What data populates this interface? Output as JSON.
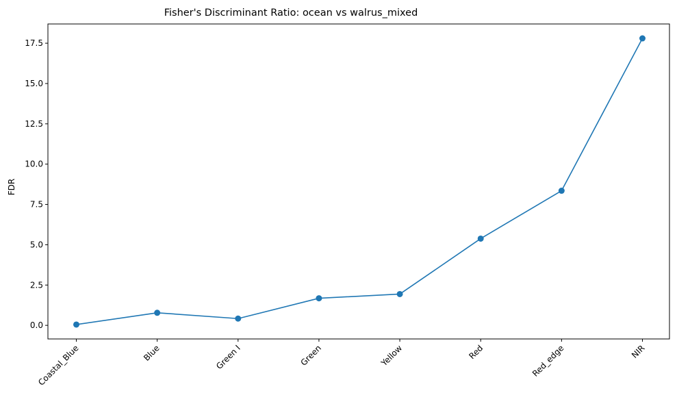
{
  "chart_data": {
    "type": "line",
    "title": "Fisher's Discriminant Ratio: ocean vs walrus_mixed",
    "xlabel": "",
    "ylabel": "FDR",
    "categories": [
      "Coastal_Blue",
      "Blue",
      "Green I",
      "Green",
      "Yellow",
      "Red",
      "Red_edge",
      "NIR"
    ],
    "series": [
      {
        "values": [
          0.05,
          0.78,
          0.42,
          1.68,
          1.94,
          5.38,
          8.35,
          17.8
        ]
      }
    ],
    "yticks": [
      "0.0",
      "2.5",
      "5.0",
      "7.5",
      "10.0",
      "12.5",
      "15.0",
      "17.5"
    ],
    "ylim": [
      -0.8435,
      18.6935
    ],
    "grid": false,
    "marker": "circle",
    "line_color": "#1f77b4"
  }
}
